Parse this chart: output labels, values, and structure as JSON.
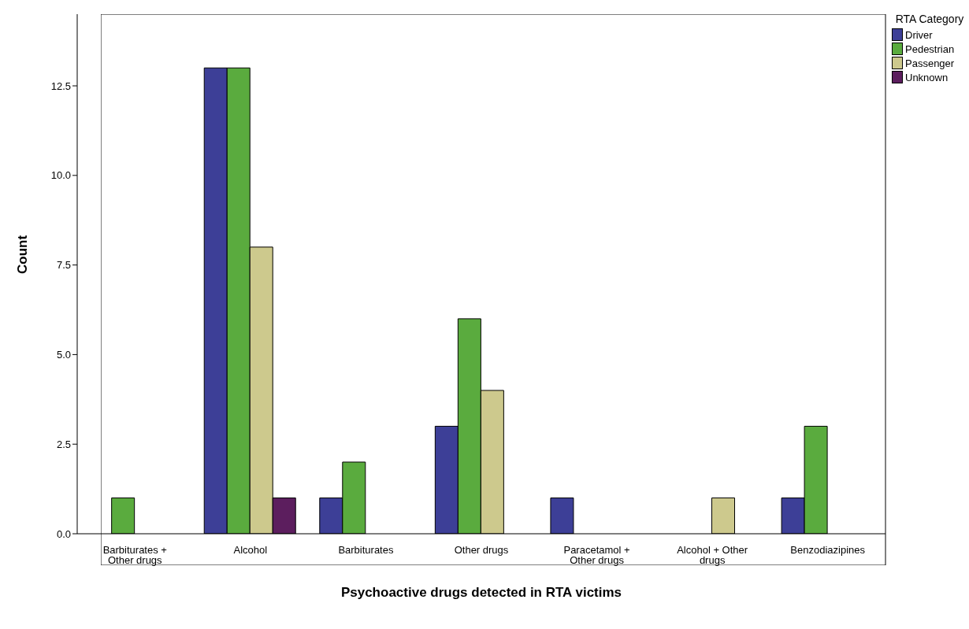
{
  "chart_data": {
    "type": "bar",
    "xlabel": "Psychoactive drugs detected in RTA victims",
    "ylabel": "Count",
    "legend_title": "RTA Category",
    "legend": "top right",
    "categories": [
      "Barbiturates + Other drugs",
      "Alcohol",
      "Barbiturates",
      "Other drugs",
      "Paracetamol + Other drugs",
      "Alcohol + Other drugs",
      "Benzodiazipines"
    ],
    "series": [
      {
        "name": "Driver",
        "color": "#3d3f97",
        "values": [
          null,
          13,
          1,
          3,
          1,
          null,
          1
        ]
      },
      {
        "name": "Pedestrian",
        "color": "#5aab3e",
        "values": [
          1,
          13,
          2,
          6,
          null,
          null,
          3
        ]
      },
      {
        "name": "Passenger",
        "color": "#cdc98d",
        "values": [
          null,
          8,
          null,
          4,
          null,
          1,
          null
        ]
      },
      {
        "name": "Unknown",
        "color": "#5c1e5e",
        "values": [
          null,
          1,
          null,
          null,
          null,
          null,
          null
        ]
      }
    ],
    "ylim": [
      0,
      14.5
    ],
    "yticks": [
      {
        "value": 0,
        "label": "0.0"
      },
      {
        "value": 2.5,
        "label": "2.5"
      },
      {
        "value": 5,
        "label": "5.0"
      },
      {
        "value": 7.5,
        "label": "7.5"
      },
      {
        "value": 10,
        "label": "10.0"
      },
      {
        "value": 12.5,
        "label": "12.5"
      }
    ],
    "grid": false
  }
}
